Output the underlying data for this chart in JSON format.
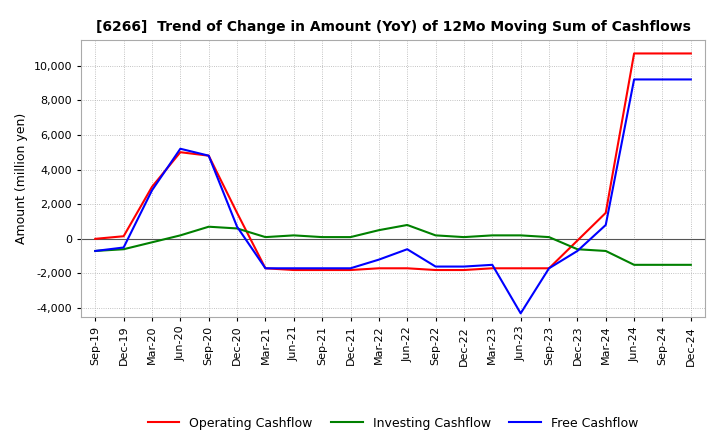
{
  "title": "[6266]  Trend of Change in Amount (YoY) of 12Mo Moving Sum of Cashflows",
  "ylabel": "Amount (million yen)",
  "x_labels": [
    "Sep-19",
    "Dec-19",
    "Mar-20",
    "Jun-20",
    "Sep-20",
    "Dec-20",
    "Mar-21",
    "Jun-21",
    "Sep-21",
    "Dec-21",
    "Mar-22",
    "Jun-22",
    "Sep-22",
    "Dec-22",
    "Mar-23",
    "Jun-23",
    "Sep-23",
    "Dec-23",
    "Mar-24",
    "Jun-24",
    "Sep-24",
    "Dec-24"
  ],
  "operating": [
    0,
    150,
    3000,
    5000,
    4800,
    1500,
    -1700,
    -1800,
    -1800,
    -1800,
    -1700,
    -1700,
    -1800,
    -1800,
    -1700,
    -1700,
    -1700,
    -100,
    1500,
    10700,
    10700,
    10700
  ],
  "investing": [
    -700,
    -600,
    -200,
    200,
    700,
    600,
    100,
    200,
    100,
    100,
    500,
    800,
    200,
    100,
    200,
    200,
    100,
    -600,
    -700,
    -1500,
    -1500,
    -1500
  ],
  "free": [
    -700,
    -500,
    2800,
    5200,
    4800,
    700,
    -1700,
    -1700,
    -1700,
    -1700,
    -1200,
    -600,
    -1600,
    -1600,
    -1500,
    -4300,
    -1700,
    -700,
    800,
    9200,
    9200,
    9200
  ],
  "ylim": [
    -4500,
    11500
  ],
  "yticks": [
    -4000,
    -2000,
    0,
    2000,
    4000,
    6000,
    8000,
    10000
  ],
  "operating_color": "#ff0000",
  "investing_color": "#008000",
  "free_color": "#0000ff",
  "bg_color": "#ffffff",
  "grid_color": "#b0b0b0"
}
